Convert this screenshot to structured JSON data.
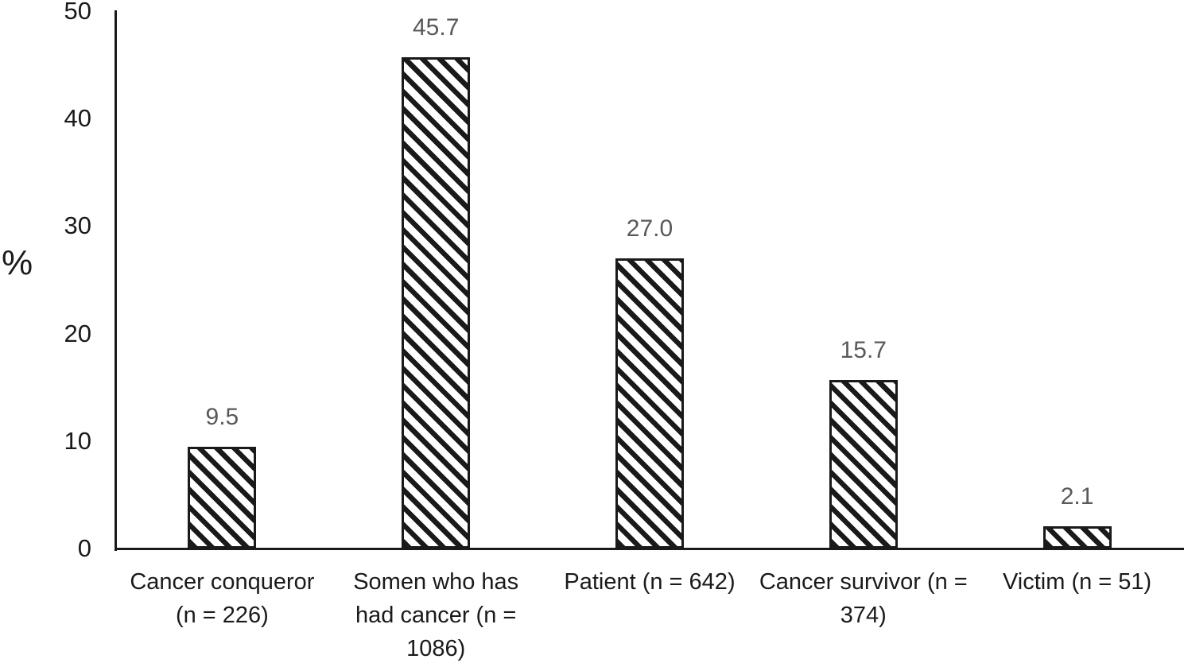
{
  "chart_data": {
    "type": "bar",
    "ylabel": "%",
    "xlabel": "",
    "categories": [
      "Cancer conqueror\n(n = 226)",
      "Somen who has\nhad cancer (n =\n1086)",
      "Patient (n = 642)",
      "Cancer survivor (n =\n374)",
      "Victim (n = 51)"
    ],
    "values": [
      9.5,
      45.7,
      27.0,
      15.7,
      2.1
    ],
    "value_labels": [
      "9.5",
      "45.7",
      "27.0",
      "15.7",
      "2.1"
    ],
    "yticks": [
      0,
      10,
      20,
      30,
      40,
      50
    ],
    "ylim": [
      0,
      50
    ],
    "grid": false,
    "legend": "none",
    "bar_fill": "wide-downward-diagonal-hatch",
    "colors": {
      "bar_stripe": "#1a1a1a",
      "bar_bg": "#ffffff",
      "axis": "#1a1a1a",
      "tick_text": "#1a1a1a",
      "category_text": "#1a1a1a",
      "data_label_text": "#595959"
    }
  }
}
